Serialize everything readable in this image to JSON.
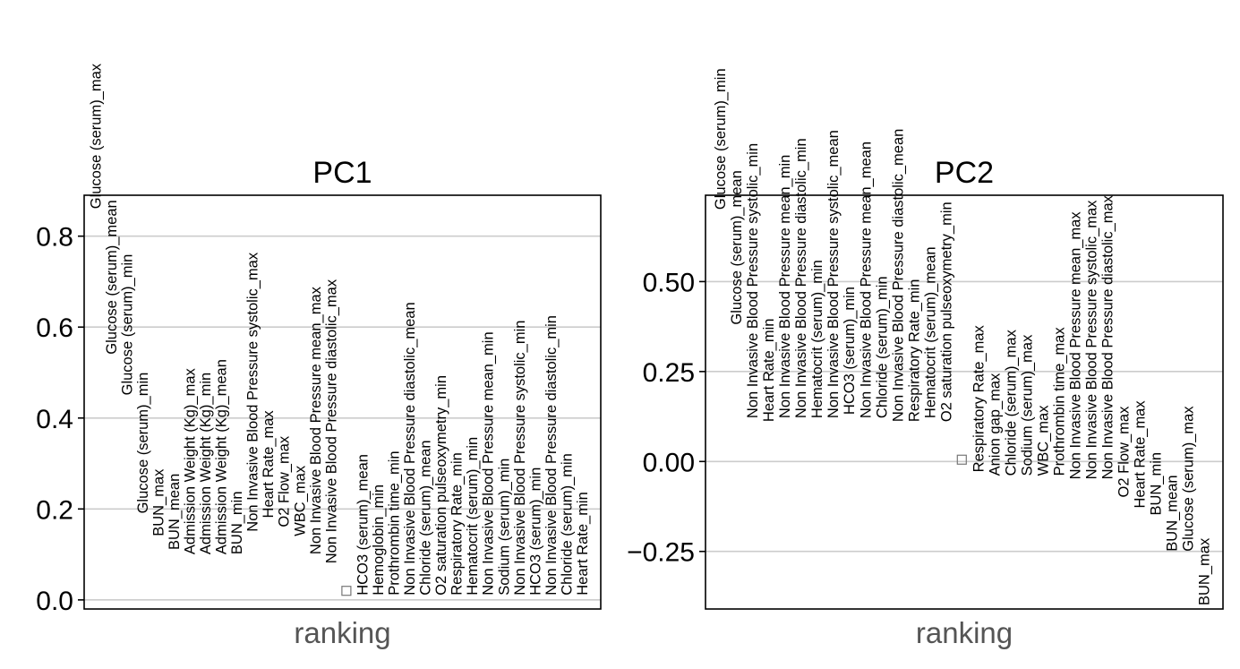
{
  "colors": {
    "grid": "#cccccc",
    "axis_label": "#555555",
    "text": "#000000",
    "frame": "#000000"
  },
  "chart_data": [
    {
      "type": "scatter",
      "title": "PC1",
      "xlabel": "ranking",
      "ylabel": "",
      "ylim": [
        -0.02,
        0.89
      ],
      "yticks": [
        0.0,
        0.2,
        0.4,
        0.6,
        0.8
      ],
      "ytick_labels": [
        "0.0",
        "0.2",
        "0.4",
        "0.6",
        "0.8"
      ],
      "grid": true,
      "x": [
        1,
        2,
        3,
        4,
        5,
        6,
        7,
        8,
        9,
        10,
        11,
        12,
        13,
        14,
        15,
        16,
        18,
        19,
        20,
        21,
        22,
        23,
        24,
        25,
        26,
        27,
        28,
        29,
        30,
        31,
        32,
        33
      ],
      "labels": [
        "Glucose (serum)_max",
        "Glucose (serum)_mean",
        "Glucose (serum)_min",
        "Glucose (serum)_min",
        "BUN_max",
        "BUN_mean",
        "Admission Weight (Kg)_max",
        "Admission Weight (Kg)_min",
        "Admission Weight (Kg)_mean",
        "BUN_min",
        "Non Invasive Blood Pressure systolic_max",
        "Heart Rate_max",
        "O2 Flow_max",
        "WBC_max",
        "Non Invasive Blood Pressure mean_max",
        "Non Invasive Blood Pressure diastolic_max",
        "HCO3 (serum)_mean",
        "Hemoglobin_min",
        "Prothrombin time_min",
        "Non Invasive Blood Pressure diastolic_mean",
        "Chloride (serum)_mean",
        "O2 saturation pulseoxymetry_min",
        "Respiratory Rate_min",
        "Hematocrit (serum)_min",
        "Non Invasive Blood Pressure mean_min",
        "Sodium (serum)_min",
        "Non Invasive Blood Pressure systolic_min",
        "HCO3 (serum)_min",
        "Non Invasive Blood Pressure diastolic_min",
        "Chloride (serum)_min",
        "Heart Rate_min"
      ],
      "label_values": [
        0.86,
        0.54,
        0.45,
        0.19,
        0.14,
        0.11,
        0.1,
        0.1,
        0.1,
        0.1,
        0.15,
        0.18,
        0.16,
        0.14,
        0.1,
        0.08,
        0.01,
        0.01,
        0.01,
        0.01,
        0.01,
        0.01,
        0.01,
        0.01,
        0.01,
        0.01,
        0.01,
        0.01,
        0.01,
        0.01,
        0.01
      ],
      "label_ranks": [
        1,
        2,
        3,
        4,
        5,
        6,
        7,
        8,
        9,
        10,
        11,
        12,
        13,
        14,
        15,
        16,
        18,
        19,
        20,
        21,
        22,
        23,
        24,
        25,
        26,
        27,
        28,
        29,
        30,
        31,
        32
      ],
      "values": [
        0.86,
        0.54,
        0.45,
        0.19,
        0.14,
        0.11,
        0.1,
        0.1,
        0.1,
        0.1,
        0.15,
        0.18,
        0.16,
        0.14,
        0.1,
        0.08,
        0.01,
        0.01,
        0.01,
        0.01,
        0.01,
        0.01,
        0.01,
        0.01,
        0.01,
        0.01,
        0.01,
        0.01,
        0.01,
        0.01,
        0.01,
        0.01
      ],
      "marker_rank": 17,
      "marker_value": 0.02,
      "xlim": [
        0.3,
        33.2
      ]
    },
    {
      "type": "scatter",
      "title": "PC2",
      "xlabel": "ranking",
      "ylabel": "",
      "ylim": [
        -0.41,
        0.74
      ],
      "yticks": [
        -0.25,
        0.0,
        0.25,
        0.5
      ],
      "ytick_labels": [
        "−0.25",
        "0.00",
        "0.25",
        "0.50"
      ],
      "grid": true,
      "labels": [
        "Glucose (serum)_min",
        "Glucose (serum)_mean",
        "Non Invasive Blood Pressure systolic_min",
        "Heart Rate_min",
        "Non Invasive Blood Pressure mean_min",
        "Non Invasive Blood Pressure diastolic_min",
        "Hematocrit (serum)_min",
        "Non Invasive Blood Pressure systolic_mean",
        "HCO3 (serum)_min",
        "Non Invasive Blood Pressure mean_mean",
        "Chloride (serum)_min",
        "Non Invasive Blood Pressure diastolic_mean",
        "Respiratory Rate_min",
        "Hematocrit (serum)_mean",
        "O2 saturation pulseoxymetry_min",
        "Respiratory Rate_max",
        "Anion gap_max",
        "Chloride (serum)_max",
        "Sodium (serum)_max",
        "WBC_max",
        "Prothrombin time_max",
        "Non Invasive Blood Pressure mean_max",
        "Non Invasive Blood Pressure systolic_max",
        "Non Invasive Blood Pressure diastolic_max",
        "O2 Flow_max",
        "Heart Rate_max",
        "BUN_min",
        "BUN_mean",
        "Glucose (serum)_max",
        "BUN_max"
      ],
      "label_values": [
        0.7,
        0.38,
        0.12,
        0.11,
        0.12,
        0.12,
        0.12,
        0.12,
        0.13,
        0.12,
        0.12,
        0.11,
        0.11,
        0.12,
        0.11,
        -0.03,
        -0.04,
        -0.04,
        -0.04,
        -0.04,
        -0.04,
        -0.05,
        -0.05,
        -0.05,
        -0.1,
        -0.13,
        -0.15,
        -0.25,
        -0.25,
        -0.4
      ],
      "label_ranks": [
        1,
        2,
        3,
        4,
        5,
        6,
        7,
        8,
        9,
        10,
        11,
        12,
        13,
        14,
        15,
        17,
        18,
        19,
        20,
        21,
        22,
        23,
        24,
        25,
        26,
        27,
        28,
        29,
        30,
        31
      ],
      "marker_rank": 16,
      "marker_value": 0.005,
      "xlim": [
        0.1,
        32.2
      ]
    }
  ]
}
